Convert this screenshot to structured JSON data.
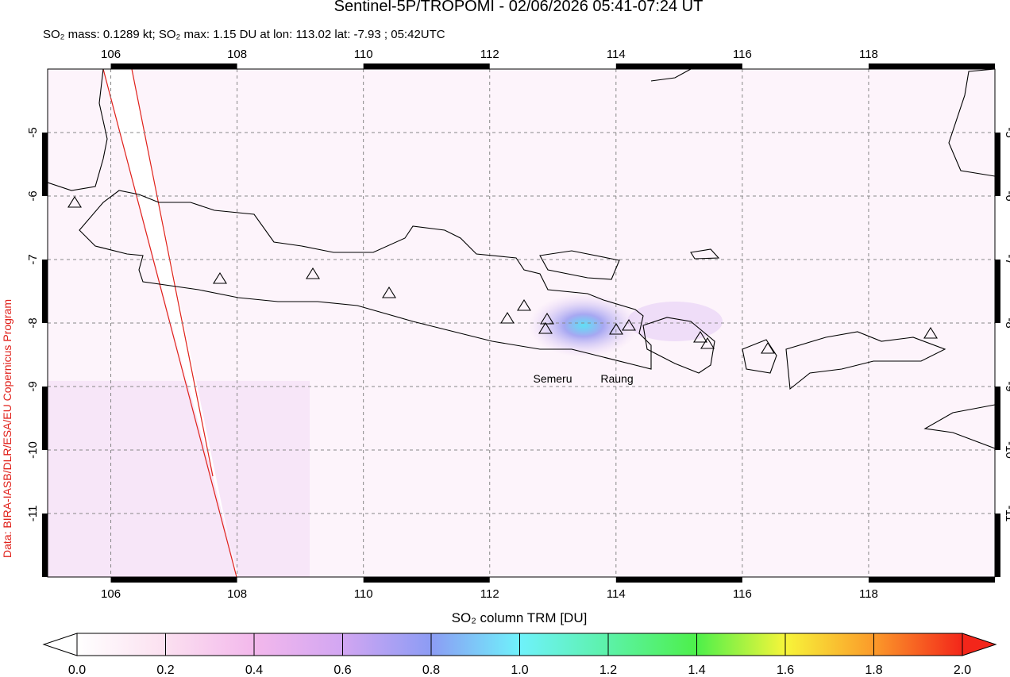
{
  "chart_data": {
    "type": "map",
    "title": "Sentinel-5P/TROPOMI - 02/06/2026 05:41-07:24 UT",
    "subtitle": "SO₂ mass: 0.1289 kt; SO₂ max: 1.15 DU at lon: 113.02 lat: -7.93 ; 05:42UTC",
    "side_label": "Data: BIRA-IASB/DLR/ESA/EU Copernicus Program",
    "xlim": [
      105,
      120
    ],
    "ylim": [
      -12,
      -4
    ],
    "xticks": [
      106,
      108,
      110,
      112,
      114,
      116,
      118
    ],
    "yticks": [
      -5,
      -6,
      -7,
      -8,
      -9,
      -10,
      -11
    ],
    "grid": true,
    "annotations": [
      "Semeru",
      "Raung"
    ],
    "colorbar": {
      "label": "SO₂ column TRM [DU]",
      "lim": [
        0,
        2
      ],
      "ticks": [
        {
          "value": 0,
          "label": "0.0"
        },
        0.2,
        0.4,
        0.6,
        0.8,
        {
          "value": 1,
          "label": "1.0"
        },
        1.2,
        1.4,
        1.6,
        1.8,
        {
          "value": 2,
          "label": "2.0"
        }
      ]
    }
  }
}
